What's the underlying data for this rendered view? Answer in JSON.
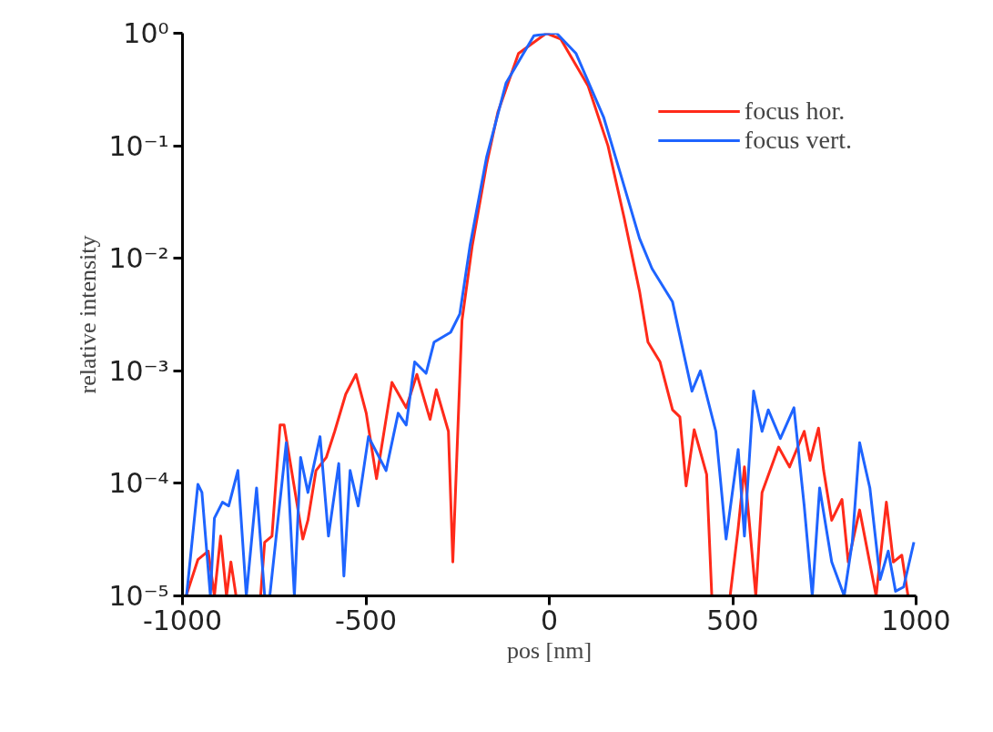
{
  "chart_data": {
    "type": "line",
    "xlabel": "pos [nm]",
    "ylabel": "relative intensity",
    "log": "y",
    "xlim": [
      -1000,
      1000
    ],
    "ylim": [
      1e-05,
      1
    ],
    "xticks": [
      -1000,
      -500,
      0,
      500,
      1000
    ],
    "yticks": [
      {
        "value": 1e-05,
        "label": "10⁻⁵"
      },
      {
        "value": 0.0001,
        "label": "10⁻⁴"
      },
      {
        "value": 0.001,
        "label": "10⁻³"
      },
      {
        "value": 0.01,
        "label": "10⁻²"
      },
      {
        "value": 0.1,
        "label": "10⁻¹"
      },
      {
        "value": 1,
        "label": "10⁰"
      }
    ],
    "grid": false,
    "legend": "top right",
    "line_style": "solid",
    "marker": "none",
    "series": [
      {
        "name": "focus hor.",
        "color": "#ff2a1a",
        "x": [
          -990,
          -958,
          -930,
          -913,
          -896,
          -880,
          -868,
          -854,
          -787,
          -776,
          -756,
          -734,
          -723,
          -672,
          -658,
          -636,
          -608,
          -585,
          -555,
          -527,
          -499,
          -471,
          -429,
          -390,
          -361,
          -325,
          -308,
          -275,
          -263,
          -238,
          -210,
          -171,
          -140,
          -84,
          -8,
          31,
          106,
          160,
          204,
          246,
          269,
          302,
          336,
          356,
          373,
          395,
          429,
          443,
          493,
          515,
          532,
          563,
          580,
          625,
          655,
          695,
          711,
          734,
          748,
          770,
          798,
          815,
          846,
          891,
          919,
          938,
          961,
          978
        ],
        "values": [
          1e-05,
          2.1e-05,
          2.5e-05,
          1e-05,
          3.4e-05,
          1e-05,
          2e-05,
          1e-05,
          1e-05,
          3e-05,
          3.4e-05,
          0.00033,
          0.00033,
          3.2e-05,
          4.7e-05,
          0.00013,
          0.00017,
          0.00029,
          0.00062,
          0.00093,
          0.00042,
          0.00011,
          0.00079,
          0.00047,
          0.00093,
          0.00037,
          0.00068,
          0.00029,
          2e-05,
          0.0028,
          0.013,
          0.068,
          0.2,
          0.66,
          1,
          0.89,
          0.34,
          0.1,
          0.023,
          0.0051,
          0.0018,
          0.0012,
          0.00045,
          0.00039,
          9.5e-05,
          0.0003,
          0.00012,
          1e-05,
          1e-05,
          4e-05,
          0.00014,
          1e-05,
          8.3e-05,
          0.00021,
          0.00014,
          0.00029,
          0.00016,
          0.00031,
          0.00013,
          4.7e-05,
          7.2e-05,
          2e-05,
          5.8e-05,
          1e-05,
          6.8e-05,
          2e-05,
          2.3e-05,
          1e-05
        ]
      },
      {
        "name": "focus vert.",
        "color": "#1e64ff",
        "x": [
          -989,
          -958,
          -947,
          -924,
          -913,
          -891,
          -874,
          -849,
          -826,
          -798,
          -776,
          -762,
          -717,
          -695,
          -678,
          -658,
          -625,
          -602,
          -574,
          -560,
          -543,
          -521,
          -493,
          -445,
          -412,
          -390,
          -367,
          -336,
          -314,
          -269,
          -244,
          -216,
          -171,
          -118,
          -42,
          3,
          20,
          73,
          148,
          193,
          246,
          280,
          336,
          367,
          389,
          412,
          454,
          482,
          515,
          532,
          557,
          580,
          597,
          630,
          667,
          695,
          717,
          737,
          770,
          804,
          826,
          846,
          874,
          902,
          924,
          944,
          966,
          994
        ],
        "values": [
          1e-05,
          9.8e-05,
          8.3e-05,
          1e-05,
          4.9e-05,
          6.8e-05,
          6.3e-05,
          0.00013,
          1e-05,
          9.1e-05,
          1e-05,
          1e-05,
          0.00023,
          1e-05,
          0.00017,
          8.3e-05,
          0.00026,
          3.4e-05,
          0.00015,
          1.5e-05,
          0.00013,
          6.3e-05,
          0.00026,
          0.00013,
          0.00042,
          0.00033,
          0.0012,
          0.00095,
          0.0018,
          0.0022,
          0.0032,
          0.013,
          0.079,
          0.36,
          0.95,
          1,
          1,
          0.66,
          0.18,
          0.058,
          0.015,
          0.0081,
          0.0041,
          0.0014,
          0.00066,
          0.001,
          0.00029,
          3.2e-05,
          0.0002,
          3.4e-05,
          0.00066,
          0.00029,
          0.00045,
          0.00025,
          0.00047,
          6.3e-05,
          1e-05,
          9.1e-05,
          2e-05,
          1e-05,
          3e-05,
          0.00023,
          9.1e-05,
          1.4e-05,
          2.5e-05,
          1.1e-05,
          1.2e-05,
          3e-05
        ]
      }
    ]
  }
}
